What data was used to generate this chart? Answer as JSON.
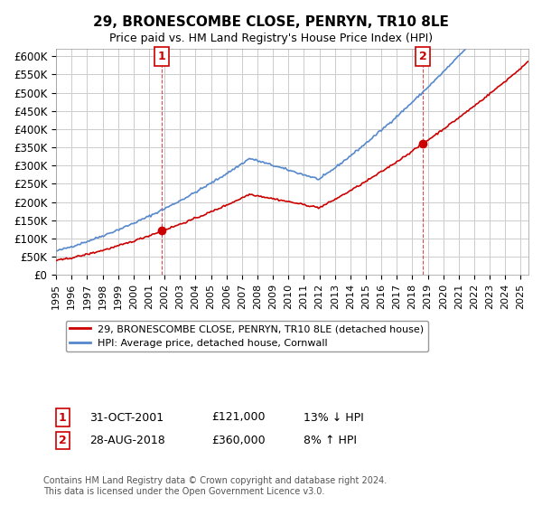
{
  "title": "29, BRONESCOMBE CLOSE, PENRYN, TR10 8LE",
  "subtitle": "Price paid vs. HM Land Registry's House Price Index (HPI)",
  "ylabel_ticks": [
    "£0",
    "£50K",
    "£100K",
    "£150K",
    "£200K",
    "£250K",
    "£300K",
    "£350K",
    "£400K",
    "£450K",
    "£500K",
    "£550K",
    "£600K"
  ],
  "ytick_values": [
    0,
    50000,
    100000,
    150000,
    200000,
    250000,
    300000,
    350000,
    400000,
    450000,
    500000,
    550000,
    600000
  ],
  "ylim": [
    0,
    620000
  ],
  "xlim_start": 1995.0,
  "xlim_end": 2025.5,
  "sale1_x": 2001.83,
  "sale1_y": 121000,
  "sale1_label": "1",
  "sale2_x": 2018.67,
  "sale2_y": 360000,
  "sale2_label": "2",
  "red_color": "#cc0000",
  "blue_color": "#5588cc",
  "bg_color": "#ffffff",
  "grid_color": "#cccccc",
  "legend_label_red": "29, BRONESCOMBE CLOSE, PENRYN, TR10 8LE (detached house)",
  "legend_label_blue": "HPI: Average price, detached house, Cornwall",
  "annotation1_date": "31-OCT-2001",
  "annotation1_price": "£121,000",
  "annotation1_hpi": "13% ↓ HPI",
  "annotation2_date": "28-AUG-2018",
  "annotation2_price": "£360,000",
  "annotation2_hpi": "8% ↑ HPI",
  "footer": "Contains HM Land Registry data © Crown copyright and database right 2024.\nThis data is licensed under the Open Government Licence v3.0."
}
